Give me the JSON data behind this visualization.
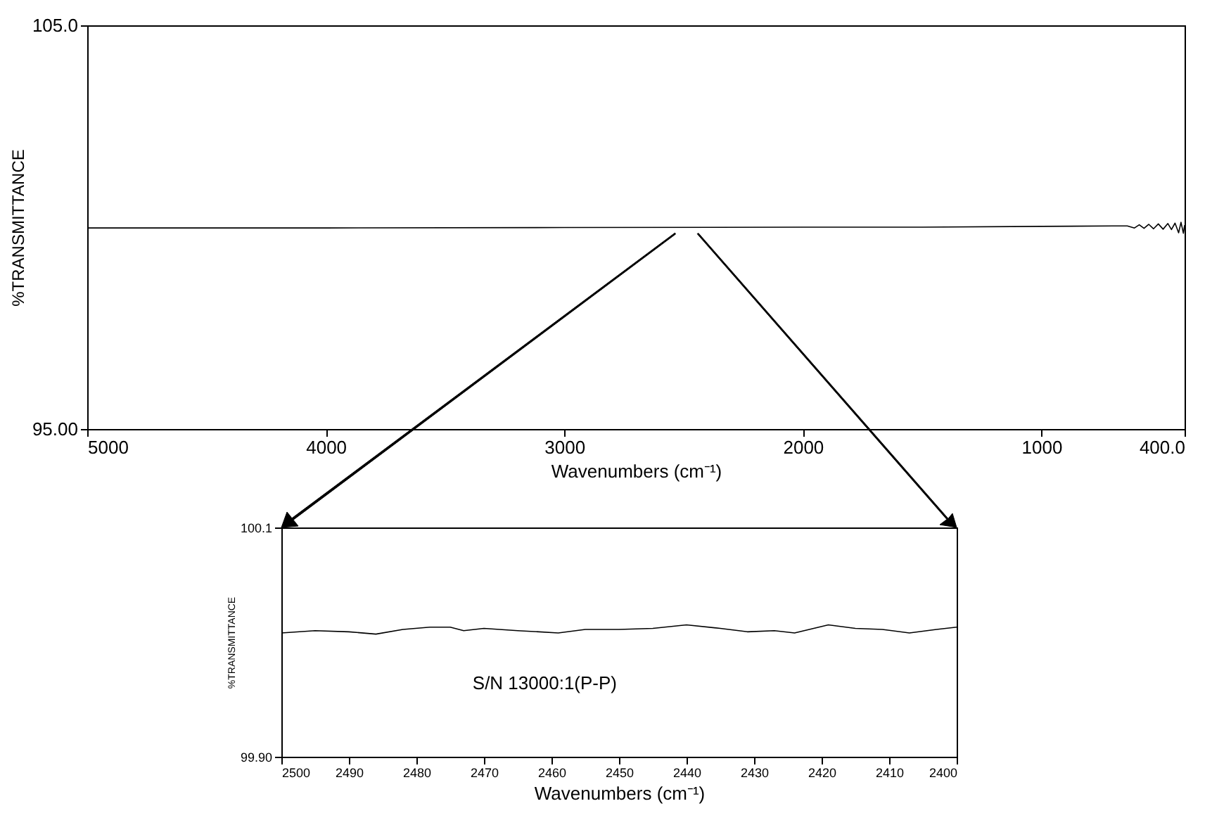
{
  "chart_data": [
    {
      "type": "line",
      "xlabel": "Wavenumbers (cm⁻¹)",
      "ylabel": "%TRANSMITTANCE",
      "xlim": [
        5000,
        400
      ],
      "ylim": [
        95,
        105
      ],
      "xticks": [
        5000,
        4000,
        3000,
        2000,
        1000,
        {
          "value": 400,
          "label": "400.0"
        }
      ],
      "yticks": [
        {
          "value": 95,
          "label": "95.00"
        },
        {
          "value": 105,
          "label": "105.0"
        }
      ],
      "grid": false,
      "marker": "none",
      "line_style": "solid",
      "x": [
        5000,
        4000,
        3000,
        2000,
        1500,
        1000,
        700,
        640,
        610,
        590,
        570,
        550,
        530,
        510,
        490,
        470,
        455,
        440,
        425,
        415,
        405,
        400
      ],
      "series": [
        {
          "color": "#000000",
          "values": [
            99.98,
            99.98,
            99.99,
            100.0,
            100.0,
            100.02,
            100.03,
            100.03,
            99.98,
            100.06,
            99.97,
            100.07,
            99.96,
            100.08,
            99.95,
            100.09,
            99.94,
            100.1,
            99.86,
            100.12,
            99.85,
            100.05
          ]
        }
      ]
    },
    {
      "type": "line",
      "xlabel": "Wavenumbers (cm⁻¹)",
      "ylabel": "%TRANSMITTANCE",
      "xlim": [
        2500,
        2400
      ],
      "ylim": [
        99.9,
        100.1
      ],
      "xticks": [
        2500,
        2490,
        2480,
        2470,
        2460,
        2450,
        2440,
        2430,
        2420,
        2410,
        2400
      ],
      "yticks": [
        {
          "value": 99.9,
          "label": "99.90"
        },
        {
          "value": 100.1,
          "label": "100.1"
        }
      ],
      "grid": false,
      "marker": "none",
      "line_style": "solid",
      "annotations": [
        "S/N  13000:1(P-P)"
      ],
      "x": [
        2500,
        2495,
        2490,
        2486,
        2482,
        2478,
        2475,
        2473,
        2470,
        2465,
        2459,
        2455,
        2450,
        2445,
        2440,
        2435,
        2431,
        2427,
        2424,
        2419,
        2415,
        2411,
        2407,
        2403,
        2400
      ],
      "series": [
        {
          "color": "#000000",
          "values": [
            100.008,
            100.01,
            100.009,
            100.007,
            100.011,
            100.013,
            100.013,
            100.01,
            100.012,
            100.01,
            100.008,
            100.011,
            100.011,
            100.012,
            100.015,
            100.012,
            100.009,
            100.01,
            100.008,
            100.015,
            100.012,
            100.011,
            100.008,
            100.011,
            100.013
          ]
        }
      ]
    }
  ]
}
